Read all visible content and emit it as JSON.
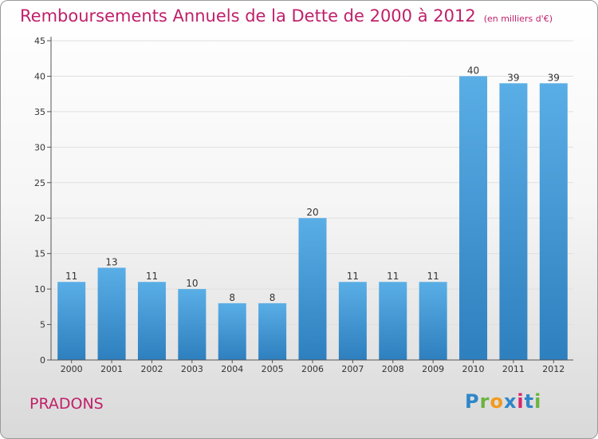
{
  "title": "Remboursements Annuels de la Dette de 2000 à 2012",
  "title_unit": "(en milliers d'€)",
  "commune": "PRADONS",
  "logo": {
    "text": "Proxiti",
    "letters": [
      "P",
      "r",
      "o",
      "x",
      "i",
      "t",
      "i"
    ],
    "colors": [
      "#2f86c9",
      "#6cb33f",
      "#f39a1d",
      "#2f86c9",
      "#d9236b",
      "#2f86c9",
      "#6cb33f"
    ]
  },
  "colors": {
    "bar_top": "#5aaee6",
    "bar_bottom": "#2e7fbe",
    "title": "#c0206a",
    "grid": "#e0e0e0",
    "axis": "#555555"
  },
  "chart_data": {
    "type": "bar",
    "categories": [
      "2000",
      "2001",
      "2002",
      "2003",
      "2004",
      "2005",
      "2006",
      "2007",
      "2008",
      "2009",
      "2010",
      "2011",
      "2012"
    ],
    "values": [
      11,
      13,
      11,
      10,
      8,
      8,
      20,
      11,
      11,
      11,
      40,
      39,
      39
    ],
    "ylim": [
      0,
      45
    ],
    "yticks": [
      0,
      5,
      10,
      15,
      20,
      25,
      30,
      35,
      40,
      45
    ],
    "grid": true
  }
}
